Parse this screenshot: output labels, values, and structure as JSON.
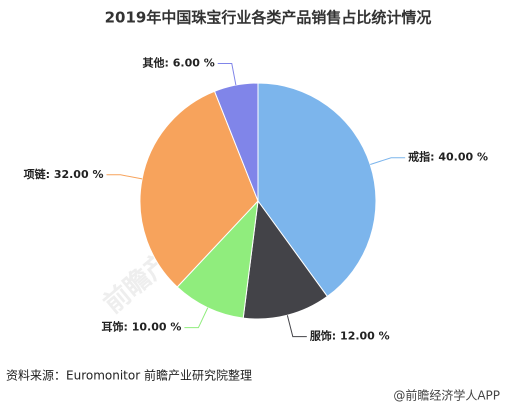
{
  "chart_data": {
    "type": "pie",
    "title": "2019年中国珠宝行业各类产品销售占比统计情况",
    "categories": [
      "戒指",
      "服饰",
      "耳饰",
      "项链",
      "其他"
    ],
    "values": [
      40,
      12,
      10,
      32,
      6
    ],
    "value_labels": [
      "戒指: 40.00 %",
      "服饰: 12.00 %",
      "耳饰: 10.00 %",
      "项链: 32.00 %",
      "其他: 6.00 %"
    ],
    "colors": [
      "#7cb5ec",
      "#434348",
      "#90ed7d",
      "#f7a35c",
      "#8085e9"
    ],
    "source": "资料来源：Euromonitor 前瞻产业研究院整理",
    "credit": "@前瞻经济学人APP",
    "watermark": "前瞻产业研究院"
  }
}
